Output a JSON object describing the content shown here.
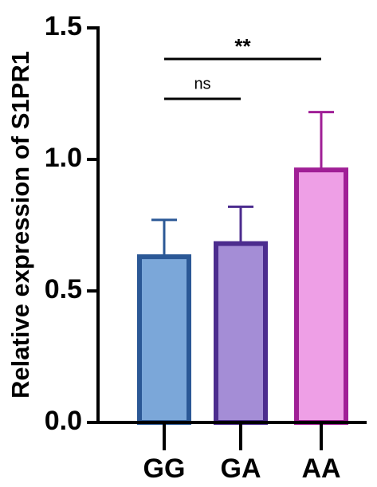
{
  "chart_data": {
    "type": "bar",
    "ylabel": "Relative expression of S1PR1",
    "categories": [
      "GG",
      "GA",
      "AA"
    ],
    "values": [
      0.63,
      0.68,
      0.96
    ],
    "errors": [
      0.14,
      0.14,
      0.22
    ],
    "colors": [
      "#7ba7d9",
      "#a48dd6",
      "#ee9fe6"
    ],
    "edge_colors": [
      "#2b5896",
      "#4c2c8e",
      "#a01f96"
    ],
    "ylim": [
      0,
      1.5
    ],
    "yticks": [
      {
        "value": 0,
        "label": "0.0"
      },
      0.5,
      {
        "value": 1,
        "label": "1.0"
      },
      1.5
    ],
    "annotations": [
      "ns",
      "**"
    ]
  }
}
